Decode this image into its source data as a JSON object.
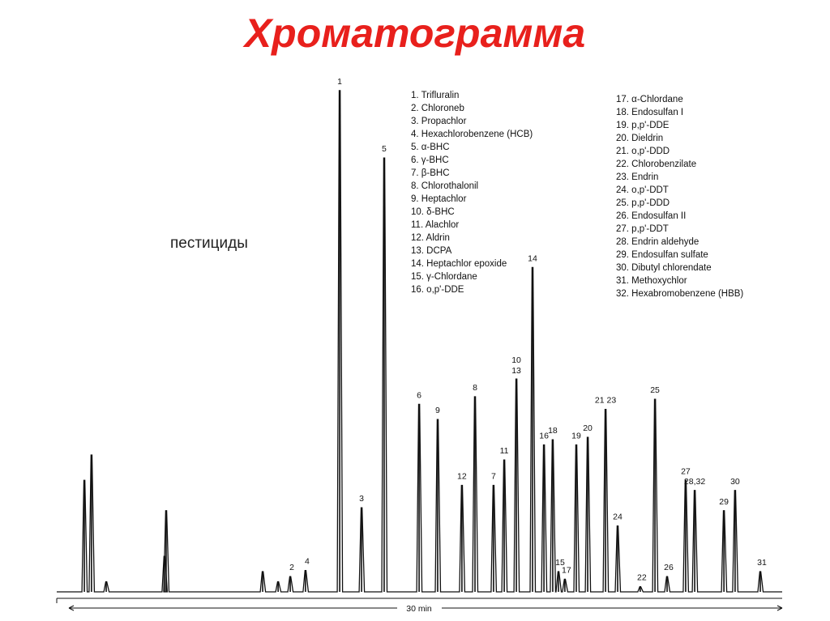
{
  "title": "Хроматограмма",
  "note": "пестициды",
  "chart_data": {
    "type": "line",
    "title": "Хроматограмма",
    "xlabel": "30 min",
    "ylabel": "",
    "xlim": [
      0,
      30
    ],
    "ylim": [
      0,
      100
    ],
    "scale_bar_label": "30 min",
    "peaks": [
      {
        "label": "",
        "t": 0.65,
        "h": 22
      },
      {
        "label": "",
        "t": 0.95,
        "h": 27
      },
      {
        "label": "",
        "t": 1.57,
        "h": 2
      },
      {
        "label": "",
        "t": 4.02,
        "h": 7
      },
      {
        "label": "",
        "t": 4.09,
        "h": 16
      },
      {
        "label": "",
        "t": 8.15,
        "h": 4
      },
      {
        "label": "",
        "t": 8.8,
        "h": 2
      },
      {
        "label": "2",
        "t": 9.31,
        "h": 3
      },
      {
        "label": "4",
        "t": 9.95,
        "h": 4.2
      },
      {
        "label": "1",
        "t": 11.39,
        "h": 98.9
      },
      {
        "label": "3",
        "t": 12.31,
        "h": 16.6
      },
      {
        "label": "5",
        "t": 13.26,
        "h": 85.6
      },
      {
        "label": "6",
        "t": 14.73,
        "h": 37
      },
      {
        "label": "9",
        "t": 15.51,
        "h": 34
      },
      {
        "label": "12",
        "t": 16.53,
        "h": 21
      },
      {
        "label": "8",
        "t": 17.08,
        "h": 38.5
      },
      {
        "label": "7",
        "t": 17.86,
        "h": 21
      },
      {
        "label": "11",
        "t": 18.31,
        "h": 26
      },
      {
        "label": "10 13",
        "t": 18.82,
        "h": 42
      },
      {
        "label": "14",
        "t": 19.5,
        "h": 64
      },
      {
        "label": "16",
        "t": 19.98,
        "h": 29
      },
      {
        "label": "18",
        "t": 20.35,
        "h": 30
      },
      {
        "label": "15",
        "t": 20.59,
        "h": 4
      },
      {
        "label": "17",
        "t": 20.86,
        "h": 2.5
      },
      {
        "label": "19",
        "t": 21.34,
        "h": 29
      },
      {
        "label": "20",
        "t": 21.82,
        "h": 30.5
      },
      {
        "label": "21 23",
        "t": 22.57,
        "h": 36
      },
      {
        "label": "24",
        "t": 23.08,
        "h": 13
      },
      {
        "label": "22",
        "t": 24.03,
        "h": 1
      },
      {
        "label": "25",
        "t": 24.65,
        "h": 38
      },
      {
        "label": "26",
        "t": 25.16,
        "h": 3
      },
      {
        "label": "27",
        "t": 25.94,
        "h": 22
      },
      {
        "label": "28,32",
        "t": 26.32,
        "h": 20
      },
      {
        "label": "29",
        "t": 27.55,
        "h": 16
      },
      {
        "label": "30",
        "t": 28.02,
        "h": 20
      },
      {
        "label": "31",
        "t": 29.08,
        "h": 4
      }
    ],
    "legend": [
      "1. Trifluralin",
      "2. Chloroneb",
      "3. Propachlor",
      "4. Hexachlorobenzene (HCB)",
      "5. α-BHC",
      "6. γ-BHC",
      "7. β-BHC",
      "8. Chlorothalonil",
      "9. Heptachlor",
      "10. δ-BHC",
      "11. Alachlor",
      "12. Aldrin",
      "13. DCPA",
      "14. Heptachlor epoxide",
      "15. γ-Chlordane",
      "16. o,p'-DDE",
      "17. α-Chlordane",
      "18. Endosulfan I",
      "19. p,p'-DDE",
      "20. Dieldrin",
      "21. o,p'-DDD",
      "22. Chlorobenzilate",
      "23. Endrin",
      "24. o,p'-DDT",
      "25. p,p'-DDD",
      "26. Endosulfan II",
      "27. p,p'-DDT",
      "28. Endrin aldehyde",
      "29. Endosulfan sulfate",
      "30. Dibutyl chlorendate",
      "31. Methoxychlor",
      "32. Hexabromobenzene (HBB)"
    ]
  }
}
